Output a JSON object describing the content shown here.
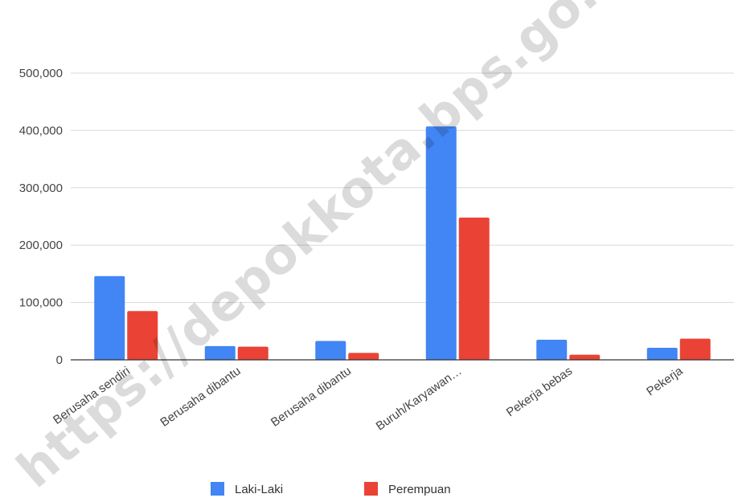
{
  "chart_data": {
    "type": "bar",
    "categories": [
      "Berusaha sendiri",
      "Berusaha dibantu",
      "Berusaha dibantu",
      "Buruh/Karyawan…",
      "Pekerja bebas",
      "Pekerja"
    ],
    "series": [
      {
        "name": "Laki-Laki",
        "values": [
          146000,
          24000,
          33000,
          407000,
          35000,
          21000
        ]
      },
      {
        "name": "Perempuan",
        "values": [
          85000,
          23000,
          12000,
          248000,
          9000,
          37000
        ]
      }
    ],
    "ylim": [
      0,
      500000
    ],
    "yticks": [
      0,
      100000,
      200000,
      300000,
      400000,
      500000
    ],
    "ytick_labels": [
      "0",
      "100,000",
      "200,000",
      "300,000",
      "400,000",
      "500,000"
    ],
    "grid": true,
    "legend": "bottom",
    "colors": {
      "Laki-Laki": "#4285f4",
      "Perempuan": "#ea4335",
      "grid": "#d9d9d9",
      "axis": "#333333"
    }
  },
  "watermark": "https://depokkota.bps.go.id"
}
